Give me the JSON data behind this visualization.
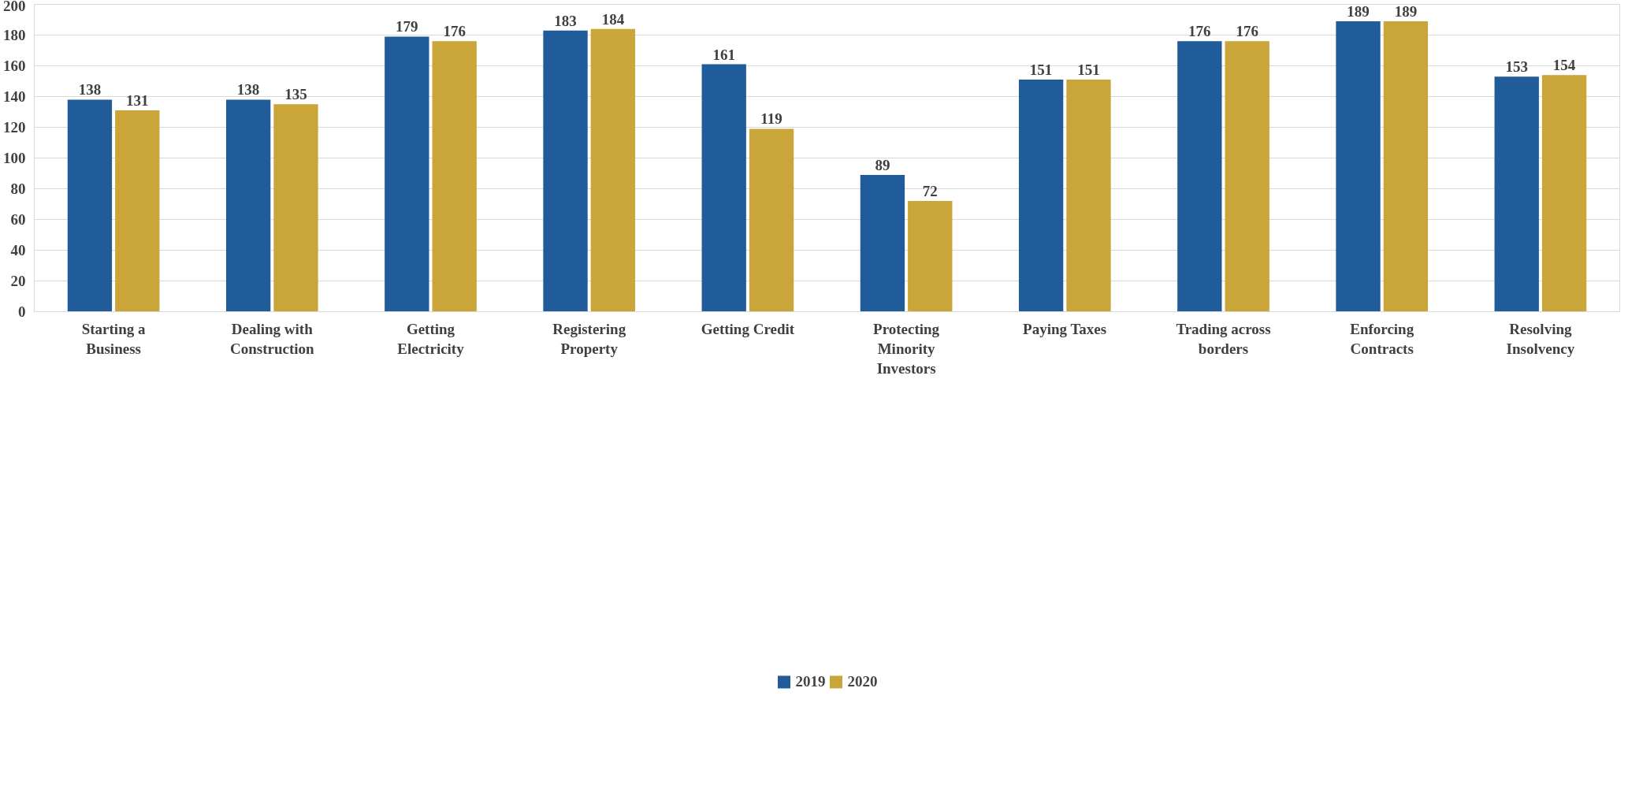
{
  "chart_data": {
    "type": "bar",
    "categories": [
      "Starting a Business",
      "Dealing with Construction",
      "Getting Electricity",
      "Registering Property",
      "Getting Credit",
      "Protecting Minority Investors",
      "Paying Taxes",
      "Trading across borders",
      "Enforcing Contracts",
      "Resolving Insolvency"
    ],
    "series": [
      {
        "name": "2019",
        "color": "#1f5c99",
        "values": [
          138,
          138,
          179,
          183,
          161,
          89,
          151,
          176,
          189,
          153
        ]
      },
      {
        "name": "2020",
        "color": "#c9a53a",
        "values": [
          131,
          135,
          176,
          184,
          119,
          72,
          151,
          176,
          189,
          154
        ]
      }
    ],
    "ylim": [
      0,
      200
    ],
    "yticks": [
      0,
      20,
      40,
      60,
      80,
      100,
      120,
      140,
      160,
      180,
      200
    ],
    "grid": "y",
    "legend": "bottom",
    "data_labels": true
  }
}
